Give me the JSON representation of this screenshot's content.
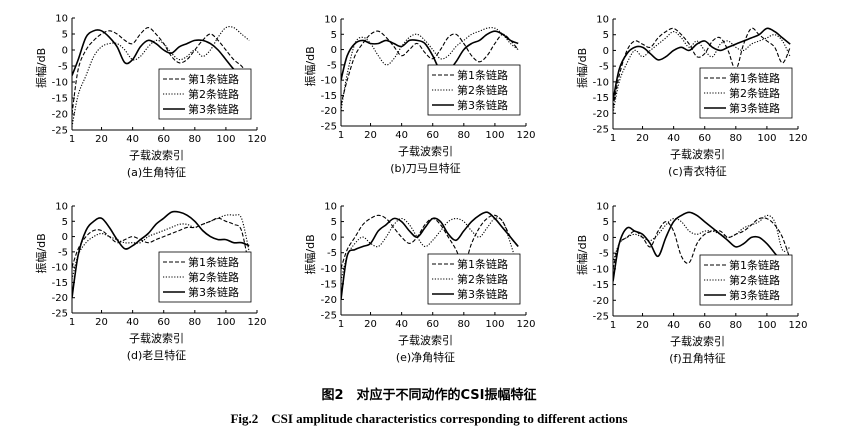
{
  "figure": {
    "caption_cn": "图2　对应于不同动作的CSI振幅特征",
    "caption_en": "Fig.2　CSI amplitude characteristics corresponding to different actions"
  },
  "chart_data": [
    {
      "type": "line",
      "subtitle": "(a)生角特征",
      "xlabel": "子载波索引",
      "ylabel": "振幅/dB",
      "xlim": [
        1,
        120
      ],
      "ylim": [
        -25,
        10
      ],
      "xticks": [
        "1",
        "20",
        "40",
        "60",
        "80",
        "100",
        "120"
      ],
      "yticks": [
        "-25",
        "-20",
        "-15",
        "-10",
        "-5",
        "0",
        "5",
        "10"
      ],
      "legend_position": "bottom-right",
      "x": [
        1,
        5,
        10,
        15,
        20,
        25,
        30,
        35,
        40,
        45,
        50,
        55,
        60,
        65,
        70,
        75,
        80,
        85,
        90,
        95,
        100,
        105,
        110,
        115
      ],
      "series": [
        {
          "name": "第1条链路",
          "style": "dashed",
          "values": [
            -20,
            -6,
            0,
            3,
            5,
            6,
            5,
            3,
            2,
            5,
            7,
            5,
            2,
            -2,
            -4,
            -3,
            0,
            3,
            5,
            3,
            0,
            -3,
            -5,
            -8
          ]
        },
        {
          "name": "第2条链路",
          "style": "dotted",
          "values": [
            -24,
            -14,
            -8,
            -2,
            1,
            2,
            2,
            0,
            -3,
            -2,
            1,
            3,
            2,
            -1,
            -3,
            -2,
            0,
            -2,
            0,
            4,
            7,
            7,
            5,
            3
          ]
        },
        {
          "name": "第3条链路",
          "style": "solid",
          "values": [
            -8,
            -3,
            4,
            6,
            6,
            4,
            1,
            -4,
            -3,
            1,
            3,
            2,
            0,
            -1,
            1,
            2,
            3,
            3,
            2,
            0,
            -3,
            -6,
            -8,
            -8
          ]
        }
      ]
    },
    {
      "type": "line",
      "subtitle": "(b)刀马旦特征",
      "xlabel": "子载波索引",
      "ylabel": "振幅/dB",
      "xlim": [
        1,
        120
      ],
      "ylim": [
        -25,
        10
      ],
      "xticks": [
        "1",
        "20",
        "40",
        "60",
        "80",
        "100",
        "120"
      ],
      "yticks": [
        "-25",
        "-20",
        "-15",
        "-10",
        "-5",
        "0",
        "5",
        "10"
      ],
      "legend_position": "bottom-right",
      "x": [
        1,
        5,
        10,
        15,
        20,
        25,
        30,
        35,
        40,
        45,
        50,
        55,
        60,
        65,
        70,
        75,
        80,
        85,
        90,
        95,
        100,
        105,
        110,
        115
      ],
      "series": [
        {
          "name": "第1条链路",
          "style": "dashed",
          "values": [
            -18,
            -10,
            -2,
            2,
            5,
            6,
            4,
            1,
            -2,
            0,
            2,
            -1,
            -3,
            0,
            4,
            5,
            2,
            -2,
            -4,
            -2,
            2,
            5,
            3,
            0
          ]
        },
        {
          "name": "第2条链路",
          "style": "dotted",
          "values": [
            -20,
            -8,
            2,
            4,
            2,
            -2,
            -5,
            -3,
            1,
            4,
            5,
            3,
            0,
            -3,
            -2,
            1,
            3,
            5,
            6,
            7,
            7,
            5,
            2,
            0
          ]
        },
        {
          "name": "第3条链路",
          "style": "solid",
          "values": [
            -10,
            -2,
            2,
            3,
            2,
            2,
            3,
            2,
            1,
            3,
            3,
            2,
            -2,
            -7,
            -7,
            -4,
            0,
            2,
            3,
            5,
            6,
            5,
            3,
            2
          ]
        }
      ]
    },
    {
      "type": "line",
      "subtitle": "(c)青衣特征",
      "xlabel": "子载波索引",
      "ylabel": "振幅/dB",
      "xlim": [
        1,
        120
      ],
      "ylim": [
        -25,
        10
      ],
      "xticks": [
        "1",
        "20",
        "40",
        "60",
        "80",
        "100",
        "120"
      ],
      "yticks": [
        "-25",
        "-20",
        "-15",
        "-10",
        "-5",
        "0",
        "5",
        "10"
      ],
      "legend_position": "bottom-right",
      "x": [
        1,
        5,
        10,
        15,
        20,
        25,
        30,
        35,
        40,
        45,
        50,
        55,
        60,
        65,
        70,
        75,
        80,
        85,
        90,
        95,
        100,
        105,
        110,
        115
      ],
      "series": [
        {
          "name": "第1条链路",
          "style": "dashed",
          "values": [
            -18,
            -8,
            0,
            3,
            2,
            1,
            4,
            6,
            7,
            5,
            2,
            -2,
            -1,
            3,
            4,
            0,
            -6,
            2,
            7,
            5,
            3,
            1,
            -4,
            1
          ]
        },
        {
          "name": "第2条链路",
          "style": "dotted",
          "values": [
            -20,
            -10,
            -4,
            0,
            -2,
            0,
            2,
            4,
            6,
            4,
            1,
            3,
            0,
            -2,
            2,
            3,
            1,
            0,
            2,
            3,
            4,
            5,
            3,
            -2
          ]
        },
        {
          "name": "第3条链路",
          "style": "solid",
          "values": [
            -16,
            -6,
            -1,
            1,
            1,
            -1,
            -3,
            -2,
            0,
            1,
            0,
            2,
            3,
            1,
            0,
            1,
            2,
            3,
            4,
            5,
            7,
            6,
            4,
            2
          ]
        }
      ]
    },
    {
      "type": "line",
      "subtitle": "(d)老旦特征",
      "xlabel": "子载波索引",
      "ylabel": "振幅/dB",
      "xlim": [
        1,
        120
      ],
      "ylim": [
        -25,
        10
      ],
      "xticks": [
        "1",
        "20",
        "40",
        "60",
        "80",
        "100",
        "120"
      ],
      "yticks": [
        "-25",
        "-20",
        "-15",
        "-10",
        "-5",
        "0",
        "5",
        "10"
      ],
      "legend_position": "bottom-right",
      "x": [
        1,
        5,
        10,
        15,
        20,
        25,
        30,
        35,
        40,
        45,
        50,
        55,
        60,
        65,
        70,
        75,
        80,
        85,
        90,
        95,
        100,
        105,
        110,
        115
      ],
      "series": [
        {
          "name": "第1条链路",
          "style": "dashed",
          "values": [
            -10,
            -4,
            0,
            2,
            2,
            0,
            -2,
            -1,
            0,
            -1,
            -2,
            -1,
            0,
            1,
            2,
            3,
            3,
            4,
            5,
            6,
            5,
            4,
            2,
            -10
          ]
        },
        {
          "name": "第2条链路",
          "style": "dotted",
          "values": [
            -14,
            -6,
            -2,
            0,
            1,
            0,
            -1,
            -2,
            -2,
            -2,
            0,
            1,
            2,
            3,
            4,
            4,
            3,
            4,
            5,
            6,
            7,
            7,
            6,
            -5
          ]
        },
        {
          "name": "第3条链路",
          "style": "solid",
          "values": [
            -20,
            -6,
            2,
            5,
            6,
            3,
            -1,
            -4,
            -3,
            -1,
            1,
            4,
            6,
            8,
            8,
            7,
            5,
            2,
            0,
            -1,
            -1,
            -2,
            -2,
            -3
          ]
        }
      ]
    },
    {
      "type": "line",
      "subtitle": "(e)净角特征",
      "xlabel": "子载波索引",
      "ylabel": "振幅/dB",
      "xlim": [
        1,
        120
      ],
      "ylim": [
        -25,
        10
      ],
      "xticks": [
        "1",
        "20",
        "40",
        "60",
        "80",
        "100",
        "120"
      ],
      "yticks": [
        "-25",
        "-20",
        "-15",
        "-10",
        "-5",
        "0",
        "5",
        "10"
      ],
      "legend_position": "bottom-right",
      "x": [
        1,
        5,
        10,
        15,
        20,
        25,
        30,
        35,
        40,
        45,
        50,
        55,
        60,
        65,
        70,
        75,
        80,
        85,
        90,
        95,
        100,
        105,
        110,
        115
      ],
      "series": [
        {
          "name": "第1条链路",
          "style": "dashed",
          "values": [
            -10,
            -4,
            0,
            4,
            6,
            7,
            6,
            3,
            0,
            -2,
            0,
            4,
            6,
            4,
            0,
            -4,
            -9,
            -2,
            3,
            6,
            7,
            5,
            0,
            -3
          ]
        },
        {
          "name": "第2条链路",
          "style": "dotted",
          "values": [
            -14,
            -6,
            -2,
            0,
            -2,
            -3,
            0,
            4,
            6,
            4,
            0,
            -3,
            -1,
            2,
            5,
            6,
            5,
            2,
            0,
            3,
            6,
            5,
            -2,
            -10
          ]
        },
        {
          "name": "第3条链路",
          "style": "solid",
          "values": [
            -20,
            -6,
            -4,
            -3,
            -2,
            2,
            4,
            6,
            5,
            2,
            0,
            3,
            6,
            5,
            1,
            -1,
            2,
            5,
            7,
            8,
            6,
            3,
            0,
            -3
          ]
        }
      ]
    },
    {
      "type": "line",
      "subtitle": "(f)丑角特征",
      "xlabel": "子载波索引",
      "ylabel": "振幅/dB",
      "xlim": [
        1,
        120
      ],
      "ylim": [
        -25,
        10
      ],
      "xticks": [
        "1",
        "20",
        "40",
        "60",
        "80",
        "100",
        "120"
      ],
      "yticks": [
        "-25",
        "-20",
        "-15",
        "-10",
        "-5",
        "0",
        "5",
        "10"
      ],
      "legend_position": "bottom-right",
      "x": [
        1,
        5,
        10,
        15,
        20,
        25,
        30,
        35,
        40,
        45,
        50,
        55,
        60,
        65,
        70,
        75,
        80,
        85,
        90,
        95,
        100,
        105,
        110,
        115
      ],
      "series": [
        {
          "name": "第1条链路",
          "style": "dashed",
          "values": [
            -10,
            -2,
            0,
            2,
            0,
            -3,
            2,
            5,
            2,
            -6,
            -8,
            -2,
            1,
            2,
            2,
            0,
            1,
            2,
            4,
            6,
            6,
            4,
            0,
            -7
          ]
        },
        {
          "name": "第2条链路",
          "style": "dotted",
          "values": [
            -8,
            -2,
            0,
            1,
            0,
            -1,
            1,
            4,
            6,
            5,
            2,
            1,
            2,
            2,
            1,
            0,
            1,
            3,
            4,
            5,
            7,
            5,
            -4,
            -3
          ]
        },
        {
          "name": "第3条链路",
          "style": "solid",
          "values": [
            -14,
            -2,
            3,
            2,
            1,
            -2,
            -6,
            0,
            5,
            7,
            8,
            7,
            5,
            3,
            1,
            -1,
            -3,
            -2,
            0,
            0,
            -2,
            -5,
            -8,
            -12
          ]
        }
      ]
    }
  ]
}
